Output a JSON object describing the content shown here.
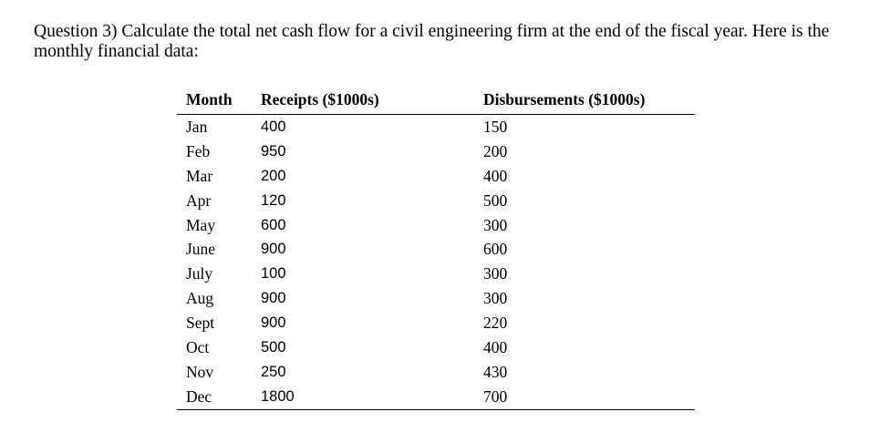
{
  "question": "Question 3) Calculate the total net cash flow for a civil engineering firm at the end of the fiscal year. Here is the monthly financial data:",
  "table": {
    "headers": [
      "Month",
      "Receipts ($1000s)",
      "Disbursements ($1000s)"
    ],
    "rows": [
      {
        "month": "Jan",
        "receipts": "400",
        "disbursements": "150"
      },
      {
        "month": "Feb",
        "receipts": "950",
        "disbursements": "200"
      },
      {
        "month": "Mar",
        "receipts": "200",
        "disbursements": "400"
      },
      {
        "month": "Apr",
        "receipts": "120",
        "disbursements": "500"
      },
      {
        "month": "May",
        "receipts": "600",
        "disbursements": "300"
      },
      {
        "month": "June",
        "receipts": "900",
        "disbursements": "600"
      },
      {
        "month": "July",
        "receipts": "100",
        "disbursements": "300"
      },
      {
        "month": "Aug",
        "receipts": "900",
        "disbursements": "300"
      },
      {
        "month": "Sept",
        "receipts": "900",
        "disbursements": "220"
      },
      {
        "month": "Oct",
        "receipts": "500",
        "disbursements": "400"
      },
      {
        "month": "Nov",
        "receipts": "250",
        "disbursements": "430"
      },
      {
        "month": "Dec",
        "receipts": "1800",
        "disbursements": "700"
      }
    ]
  }
}
